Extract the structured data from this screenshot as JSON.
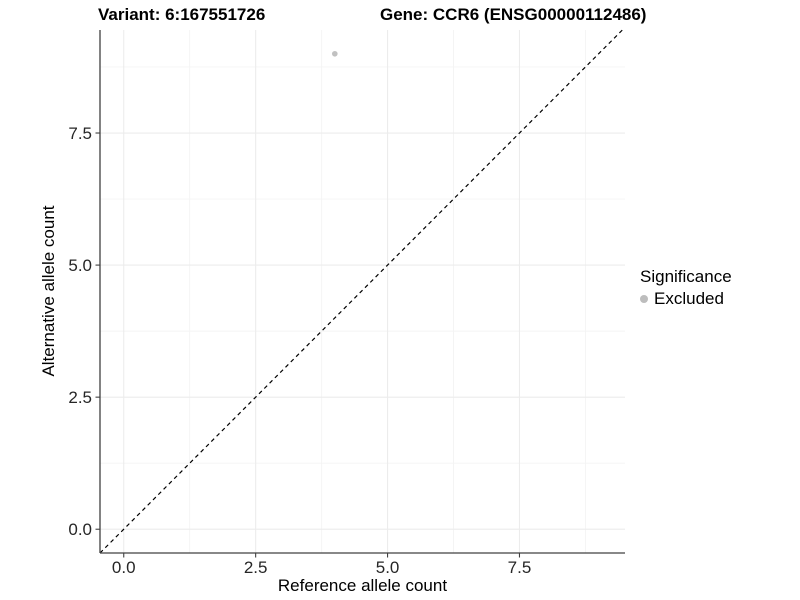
{
  "titles": {
    "variant": "Variant: 6:167551726",
    "gene": "Gene: CCR6 (ENSG00000112486)"
  },
  "legend": {
    "title": "Significance",
    "items": [
      {
        "label": "Excluded",
        "marker": "circle-icon",
        "color": "#bdbdbd"
      }
    ]
  },
  "colors": {
    "background": "#ffffff",
    "axis_line": "#404040",
    "tick_mark": "#404040",
    "tick_text": "#262626",
    "grid_major": "#ececec",
    "grid_minor": "#f4f4f4",
    "reference_line": "#000000",
    "point": "#c1c1c1"
  },
  "chart_data": {
    "type": "scatter",
    "title_left": "Variant: 6:167551726",
    "title_right": "Gene: CCR6 (ENSG00000112486)",
    "xlabel": "Reference allele count",
    "ylabel": "Alternative allele count",
    "xlim": [
      -0.45,
      9.5
    ],
    "ylim": [
      -0.45,
      9.45
    ],
    "x_ticks": [
      0.0,
      2.5,
      5.0,
      7.5
    ],
    "y_ticks": [
      0.0,
      2.5,
      5.0,
      7.5
    ],
    "x_tick_labels": [
      "0.0",
      "2.5",
      "5.0",
      "7.5"
    ],
    "y_tick_labels": [
      "0.0",
      "2.5",
      "5.0",
      "7.5"
    ],
    "minor_x_ticks": [
      1.25,
      3.75,
      6.25,
      8.75
    ],
    "minor_y_ticks": [
      1.25,
      3.75,
      6.25,
      8.75
    ],
    "grid": "major+minor",
    "legend_position": "right",
    "legend_title": "Significance",
    "series": [
      {
        "name": "Excluded",
        "color": "#c1c1c1",
        "points": [
          {
            "x": 4,
            "y": 9
          }
        ]
      }
    ],
    "reference_line": {
      "kind": "identity y=x",
      "style": "dashed",
      "color": "#000000"
    }
  }
}
